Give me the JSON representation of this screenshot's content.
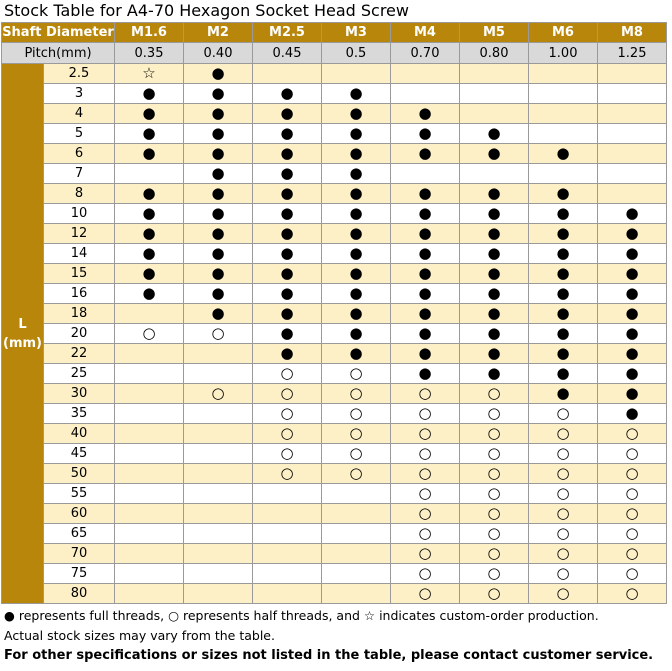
{
  "title": "Stock Table for A4-70 Hexagon Socket Head Screw",
  "table": {
    "header_label": "Shaft Diameter",
    "columns": [
      "M1.6",
      "M2",
      "M2.5",
      "M3",
      "M4",
      "M5",
      "M6",
      "M8"
    ],
    "pitch_label": "Pitch(mm)",
    "pitches": [
      "0.35",
      "0.40",
      "0.45",
      "0.5",
      "0.70",
      "0.80",
      "1.00",
      "1.25"
    ],
    "row_label": "L",
    "row_unit": "(mm)",
    "rows": [
      [
        "2.5",
        "☆",
        "●",
        null,
        null,
        null,
        null,
        null,
        null
      ],
      [
        "3",
        "●",
        "●",
        "●",
        "●",
        null,
        null,
        null,
        null
      ],
      [
        "4",
        "●",
        "●",
        "●",
        "●",
        "●",
        null,
        null,
        null
      ],
      [
        "5",
        "●",
        "●",
        "●",
        "●",
        "●",
        "●",
        null,
        null
      ],
      [
        "6",
        "●",
        "●",
        "●",
        "●",
        "●",
        "●",
        "●",
        null
      ],
      [
        "7",
        null,
        "●",
        "●",
        "●",
        null,
        null,
        null,
        null
      ],
      [
        "8",
        "●",
        "●",
        "●",
        "●",
        "●",
        "●",
        "●",
        null
      ],
      [
        "10",
        "●",
        "●",
        "●",
        "●",
        "●",
        "●",
        "●",
        "●"
      ],
      [
        "12",
        "●",
        "●",
        "●",
        "●",
        "●",
        "●",
        "●",
        "●"
      ],
      [
        "14",
        "●",
        "●",
        "●",
        "●",
        "●",
        "●",
        "●",
        "●"
      ],
      [
        "15",
        "●",
        "●",
        "●",
        "●",
        "●",
        "●",
        "●",
        "●"
      ],
      [
        "16",
        "●",
        "●",
        "●",
        "●",
        "●",
        "●",
        "●",
        "●"
      ],
      [
        "18",
        null,
        "●",
        "●",
        "●",
        "●",
        "●",
        "●",
        "●"
      ],
      [
        "20",
        "○",
        "○",
        "●",
        "●",
        "●",
        "●",
        "●",
        "●"
      ],
      [
        "22",
        null,
        null,
        "●",
        "●",
        "●",
        "●",
        "●",
        "●"
      ],
      [
        "25",
        null,
        null,
        "○",
        "○",
        "●",
        "●",
        "●",
        "●"
      ],
      [
        "30",
        null,
        "○",
        "○",
        "○",
        "○",
        "○",
        "●",
        "●"
      ],
      [
        "35",
        null,
        null,
        "○",
        "○",
        "○",
        "○",
        "○",
        "●"
      ],
      [
        "40",
        null,
        null,
        "○",
        "○",
        "○",
        "○",
        "○",
        "○"
      ],
      [
        "45",
        null,
        null,
        "○",
        "○",
        "○",
        "○",
        "○",
        "○"
      ],
      [
        "50",
        null,
        null,
        "○",
        "○",
        "○",
        "○",
        "○",
        "○"
      ],
      [
        "55",
        null,
        null,
        null,
        null,
        "○",
        "○",
        "○",
        "○"
      ],
      [
        "60",
        null,
        null,
        null,
        null,
        "○",
        "○",
        "○",
        "○"
      ],
      [
        "65",
        null,
        null,
        null,
        null,
        "○",
        "○",
        "○",
        "○"
      ],
      [
        "70",
        null,
        null,
        null,
        null,
        "○",
        "○",
        "○",
        "○"
      ],
      [
        "75",
        null,
        null,
        null,
        null,
        "○",
        "○",
        "○",
        "○"
      ],
      [
        "80",
        null,
        null,
        null,
        null,
        "○",
        "○",
        "○",
        "○"
      ]
    ]
  },
  "notes": [
    "● represents full threads, ○ represents half threads, and ☆ indicates custom-order production.",
    "Actual stock sizes may vary from the table.",
    "For other specifications or sizes not listed in the table, please contact customer service."
  ]
}
